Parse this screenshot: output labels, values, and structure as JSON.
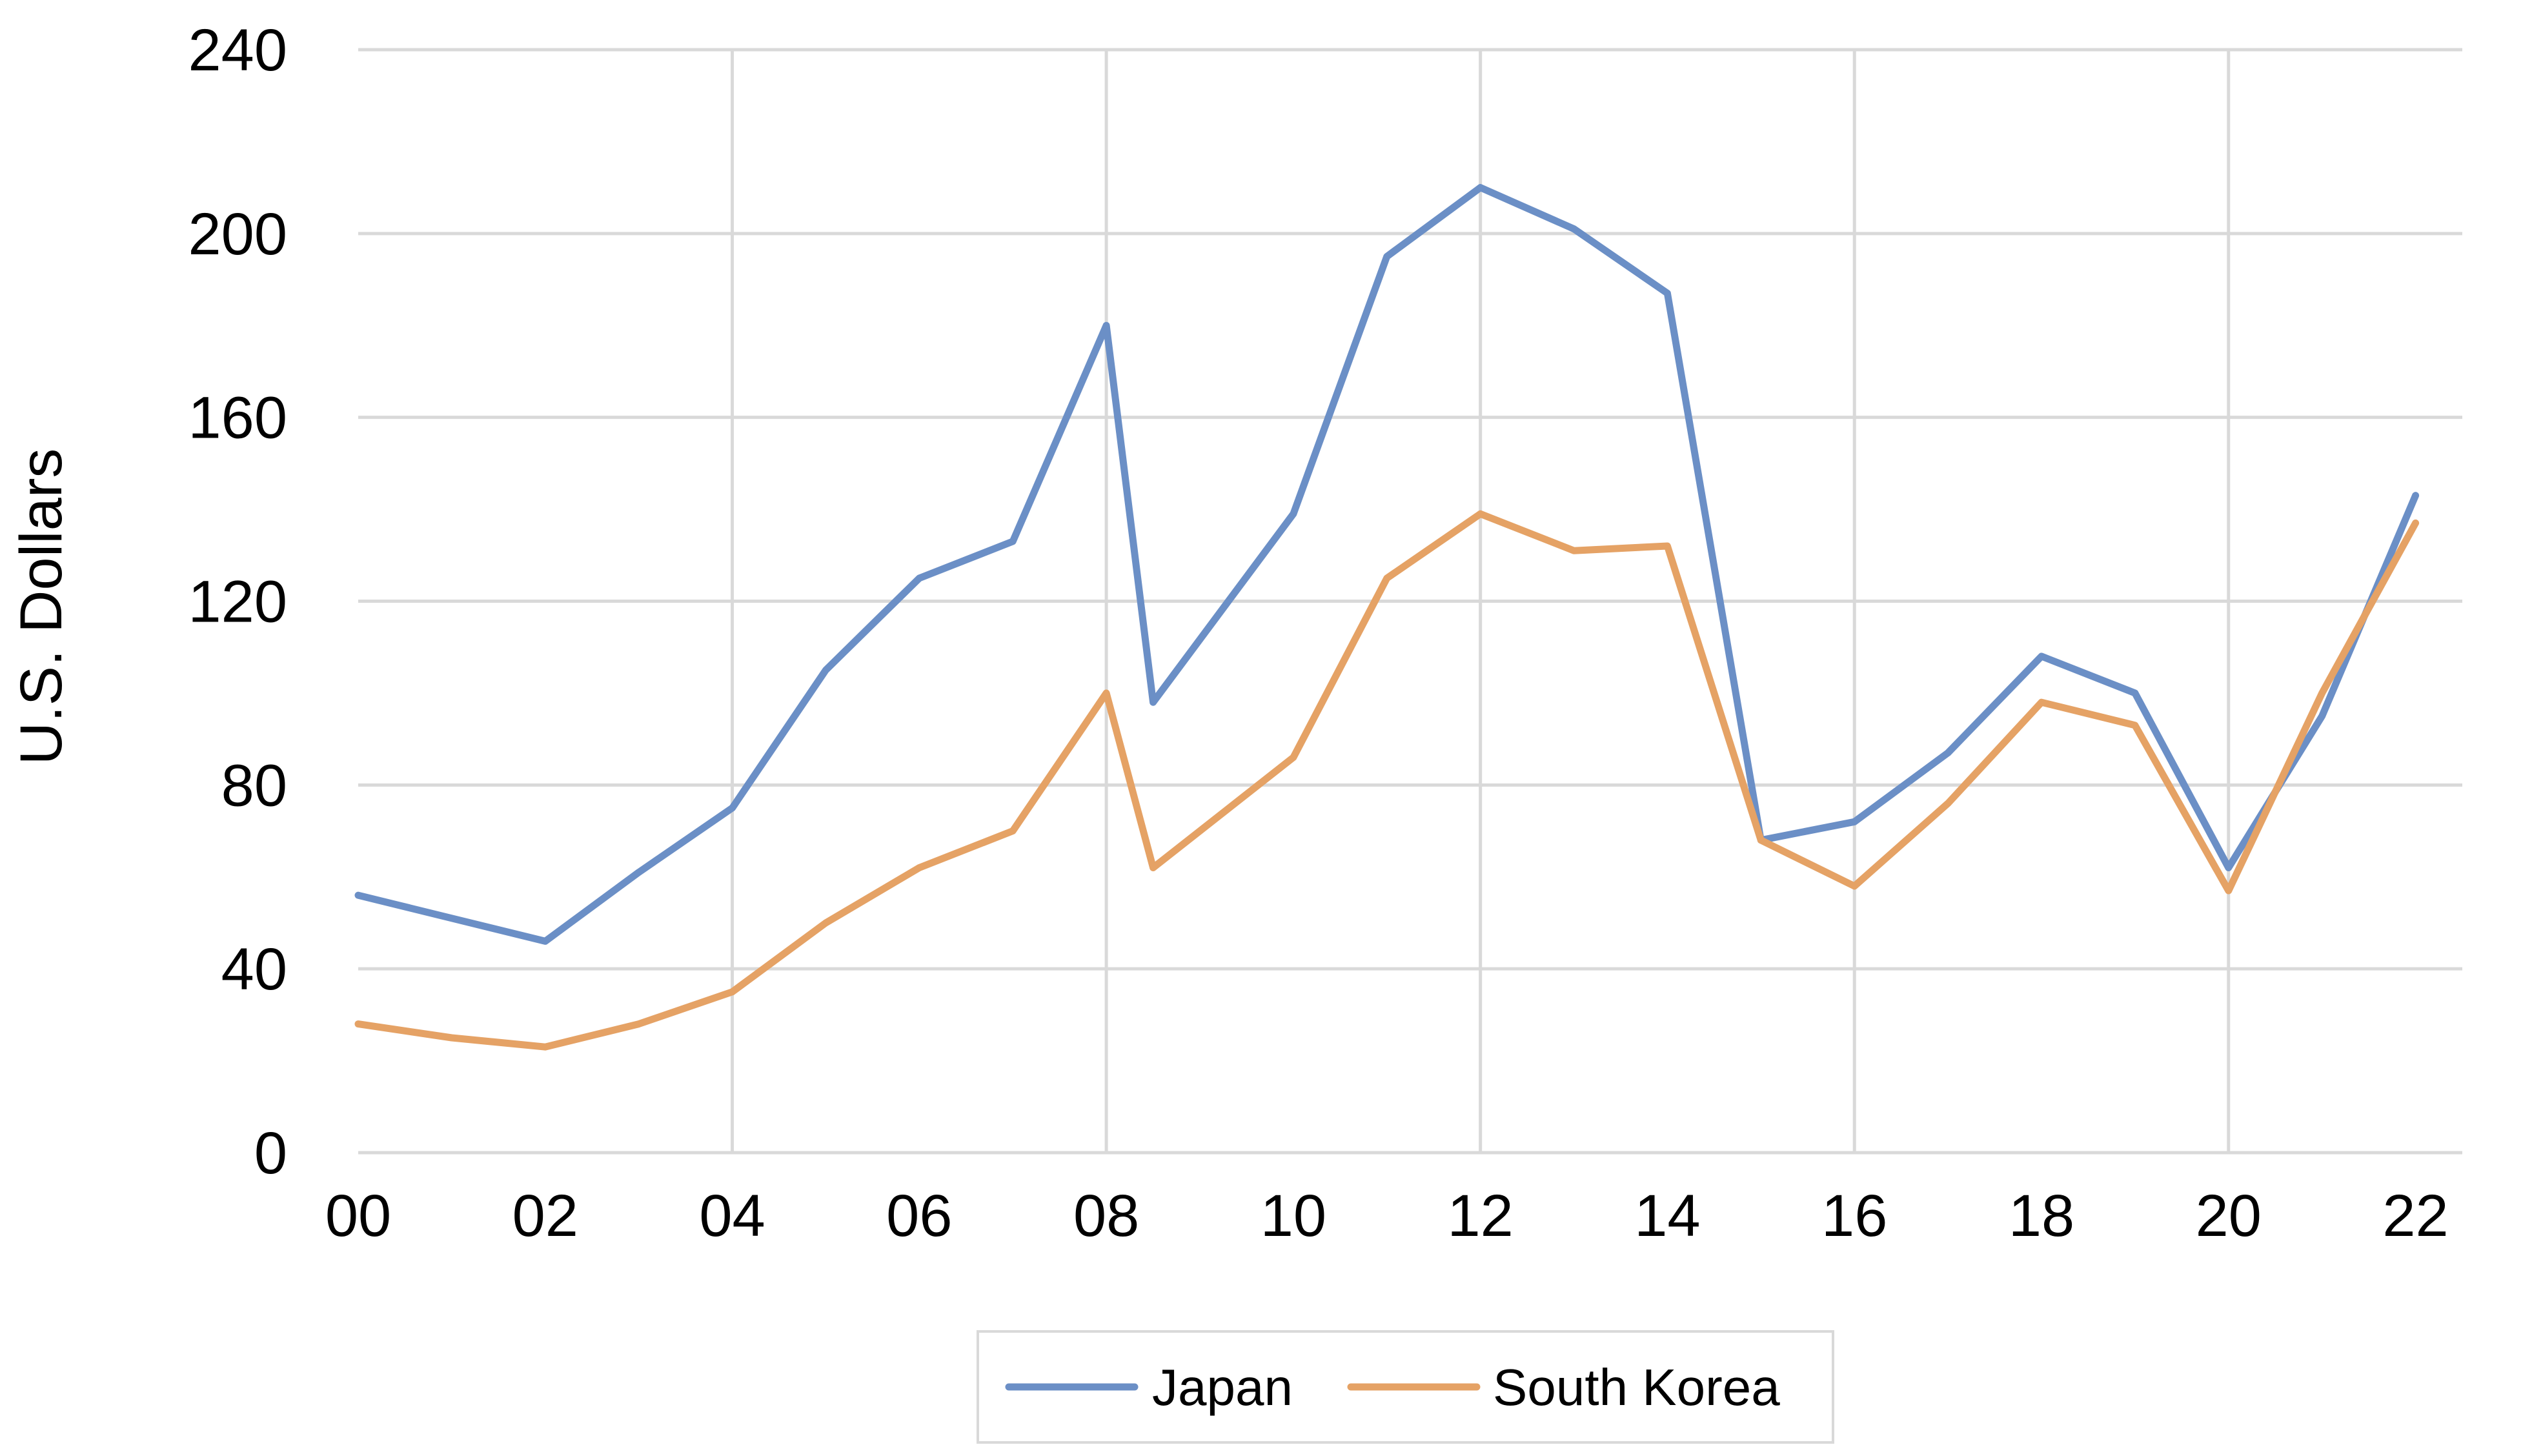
{
  "chart_data": {
    "type": "line",
    "ylabel": "U.S. Dollars",
    "ylim": [
      0,
      240
    ],
    "yticks": [
      0,
      40,
      80,
      120,
      160,
      200,
      240
    ],
    "xlim": [
      2000,
      2022.5
    ],
    "x_tick_values": [
      2000,
      2002,
      2004,
      2006,
      2008,
      2010,
      2012,
      2014,
      2016,
      2018,
      2020,
      2022
    ],
    "x_tick_labels": [
      "00",
      "02",
      "04",
      "06",
      "08",
      "10",
      "12",
      "14",
      "16",
      "18",
      "20",
      "22"
    ],
    "grid": {
      "horizontal": true,
      "vertical": "every 4 years"
    },
    "legend_position": "bottom-center",
    "series": [
      {
        "name": "Japan",
        "color": "#6b8fc6",
        "points": [
          [
            2000.0,
            56
          ],
          [
            2001.0,
            51
          ],
          [
            2002.0,
            46
          ],
          [
            2003.0,
            61
          ],
          [
            2004.0,
            75
          ],
          [
            2005.0,
            105
          ],
          [
            2006.0,
            125
          ],
          [
            2007.0,
            133
          ],
          [
            2008.0,
            180
          ],
          [
            2008.5,
            98
          ],
          [
            2010.0,
            139
          ],
          [
            2011.0,
            195
          ],
          [
            2012.0,
            210
          ],
          [
            2013.0,
            201
          ],
          [
            2014.0,
            187
          ],
          [
            2015.0,
            68
          ],
          [
            2016.0,
            72
          ],
          [
            2017.0,
            87
          ],
          [
            2018.0,
            108
          ],
          [
            2019.0,
            100
          ],
          [
            2020.0,
            62
          ],
          [
            2021.0,
            95
          ],
          [
            2022.0,
            143
          ]
        ]
      },
      {
        "name": "South Korea",
        "color": "#e5a265",
        "points": [
          [
            2000.0,
            28
          ],
          [
            2001.0,
            25
          ],
          [
            2002.0,
            23
          ],
          [
            2003.0,
            28
          ],
          [
            2004.0,
            35
          ],
          [
            2005.0,
            50
          ],
          [
            2006.0,
            62
          ],
          [
            2007.0,
            70
          ],
          [
            2008.0,
            100
          ],
          [
            2008.5,
            62
          ],
          [
            2010.0,
            86
          ],
          [
            2011.0,
            125
          ],
          [
            2012.0,
            139
          ],
          [
            2013.0,
            131
          ],
          [
            2014.0,
            132
          ],
          [
            2015.0,
            68
          ],
          [
            2016.0,
            58
          ],
          [
            2017.0,
            76
          ],
          [
            2018.0,
            98
          ],
          [
            2019.0,
            93
          ],
          [
            2020.0,
            57
          ],
          [
            2021.0,
            100
          ],
          [
            2022.0,
            137
          ]
        ]
      }
    ]
  }
}
